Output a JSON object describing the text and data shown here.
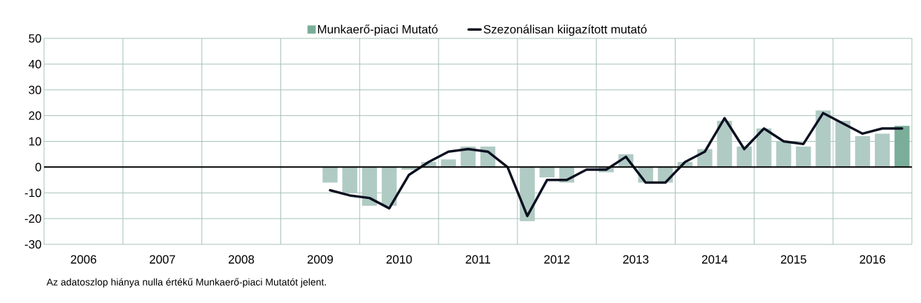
{
  "chart_data": {
    "type": "bar",
    "legend": "top",
    "grid": true,
    "xlim": [
      2006,
      2017
    ],
    "ylim": [
      -30,
      50
    ],
    "yticks": [
      -30,
      -20,
      -10,
      0,
      10,
      20,
      30,
      40,
      50
    ],
    "xticks": [
      {
        "value": 2006,
        "label": null
      },
      {
        "value": 2007,
        "label": null
      },
      {
        "value": 2008,
        "label": null
      },
      {
        "value": 2009,
        "label": null
      },
      {
        "value": 2010,
        "label": null
      },
      {
        "value": 2011,
        "label": null
      },
      {
        "value": 2012,
        "label": null
      },
      {
        "value": 2013,
        "label": null
      },
      {
        "value": 2014,
        "label": null
      },
      {
        "value": 2015,
        "label": null
      },
      {
        "value": 2016,
        "label": null
      },
      {
        "value": 2017,
        "label": null
      },
      {
        "value": 2006.5,
        "label": "2006"
      },
      {
        "value": 2007.5,
        "label": "2007"
      },
      {
        "value": 2008.5,
        "label": "2008"
      },
      {
        "value": 2009.5,
        "label": "2009"
      },
      {
        "value": 2010.5,
        "label": "2010"
      },
      {
        "value": 2011.5,
        "label": "2011"
      },
      {
        "value": 2012.5,
        "label": "2012"
      },
      {
        "value": 2013.5,
        "label": "2013"
      },
      {
        "value": 2014.5,
        "label": "2014"
      },
      {
        "value": 2015.5,
        "label": "2015"
      },
      {
        "value": 2016.5,
        "label": "2016"
      }
    ],
    "series": [
      {
        "name": "Munkaerő-piaci Mutató",
        "type": "bar",
        "color": "#7aae98",
        "x": [
          2009.625,
          2009.875,
          2010.125,
          2010.375,
          2010.625,
          2010.875,
          2011.125,
          2011.375,
          2011.625,
          2011.875,
          2012.125,
          2012.375,
          2012.625,
          2012.875,
          2013.125,
          2013.375,
          2013.625,
          2013.875,
          2014.125,
          2014.375,
          2014.625,
          2014.875,
          2015.125,
          2015.375,
          2015.625,
          2015.875,
          2016.125,
          2016.375,
          2016.625,
          2016.875
        ],
        "values": [
          -6,
          -10,
          -15,
          -15,
          -1,
          2,
          3,
          8,
          8,
          0,
          -21,
          -4,
          -6,
          null,
          -2,
          5,
          -6,
          -6,
          2,
          7,
          18,
          8,
          15,
          10,
          8,
          22,
          18,
          12,
          13,
          16
        ],
        "colors": [
          "#b0cbc4",
          "#b0cbc4",
          "#b0cbc4",
          "#b0cbc4",
          "#b0cbc4",
          "#b0cbc4",
          "#b0cbc4",
          "#b0cbc4",
          "#b0cbc4",
          "#b0cbc4",
          "#b0cbc4",
          "#b0cbc4",
          "#b0cbc4",
          "#b0cbc4",
          "#b0cbc4",
          "#b0cbc4",
          "#b0cbc4",
          "#b0cbc4",
          "#b0cbc4",
          "#b0cbc4",
          "#b0cbc4",
          "#b0cbc4",
          "#b0cbc4",
          "#b0cbc4",
          "#b0cbc4",
          "#b0cbc4",
          "#b0cbc4",
          "#b0cbc4",
          "#b0cbc4",
          "#7aae98"
        ]
      },
      {
        "name": "Szezonálisan kiigazított mutató",
        "type": "line",
        "color": "#0b1020",
        "x": [
          2009.625,
          2009.875,
          2010.125,
          2010.375,
          2010.625,
          2010.875,
          2011.125,
          2011.375,
          2011.625,
          2011.875,
          2012.125,
          2012.375,
          2012.625,
          2012.875,
          2013.125,
          2013.375,
          2013.625,
          2013.875,
          2014.125,
          2014.375,
          2014.625,
          2014.875,
          2015.125,
          2015.375,
          2015.625,
          2015.875,
          2016.125,
          2016.375,
          2016.625,
          2016.875
        ],
        "values": [
          -9,
          -11,
          -12,
          -16,
          -3,
          2,
          6,
          7,
          6,
          0,
          -19,
          -5,
          -5,
          -1,
          -1,
          4,
          -6,
          -6,
          2,
          6,
          19,
          7,
          15,
          10,
          9,
          21,
          17,
          13,
          15,
          15
        ]
      }
    ],
    "annotations": [
      "Az adatoszlop hiánya nulla értékű Munkaerő-piaci Mutatót jelent."
    ]
  }
}
